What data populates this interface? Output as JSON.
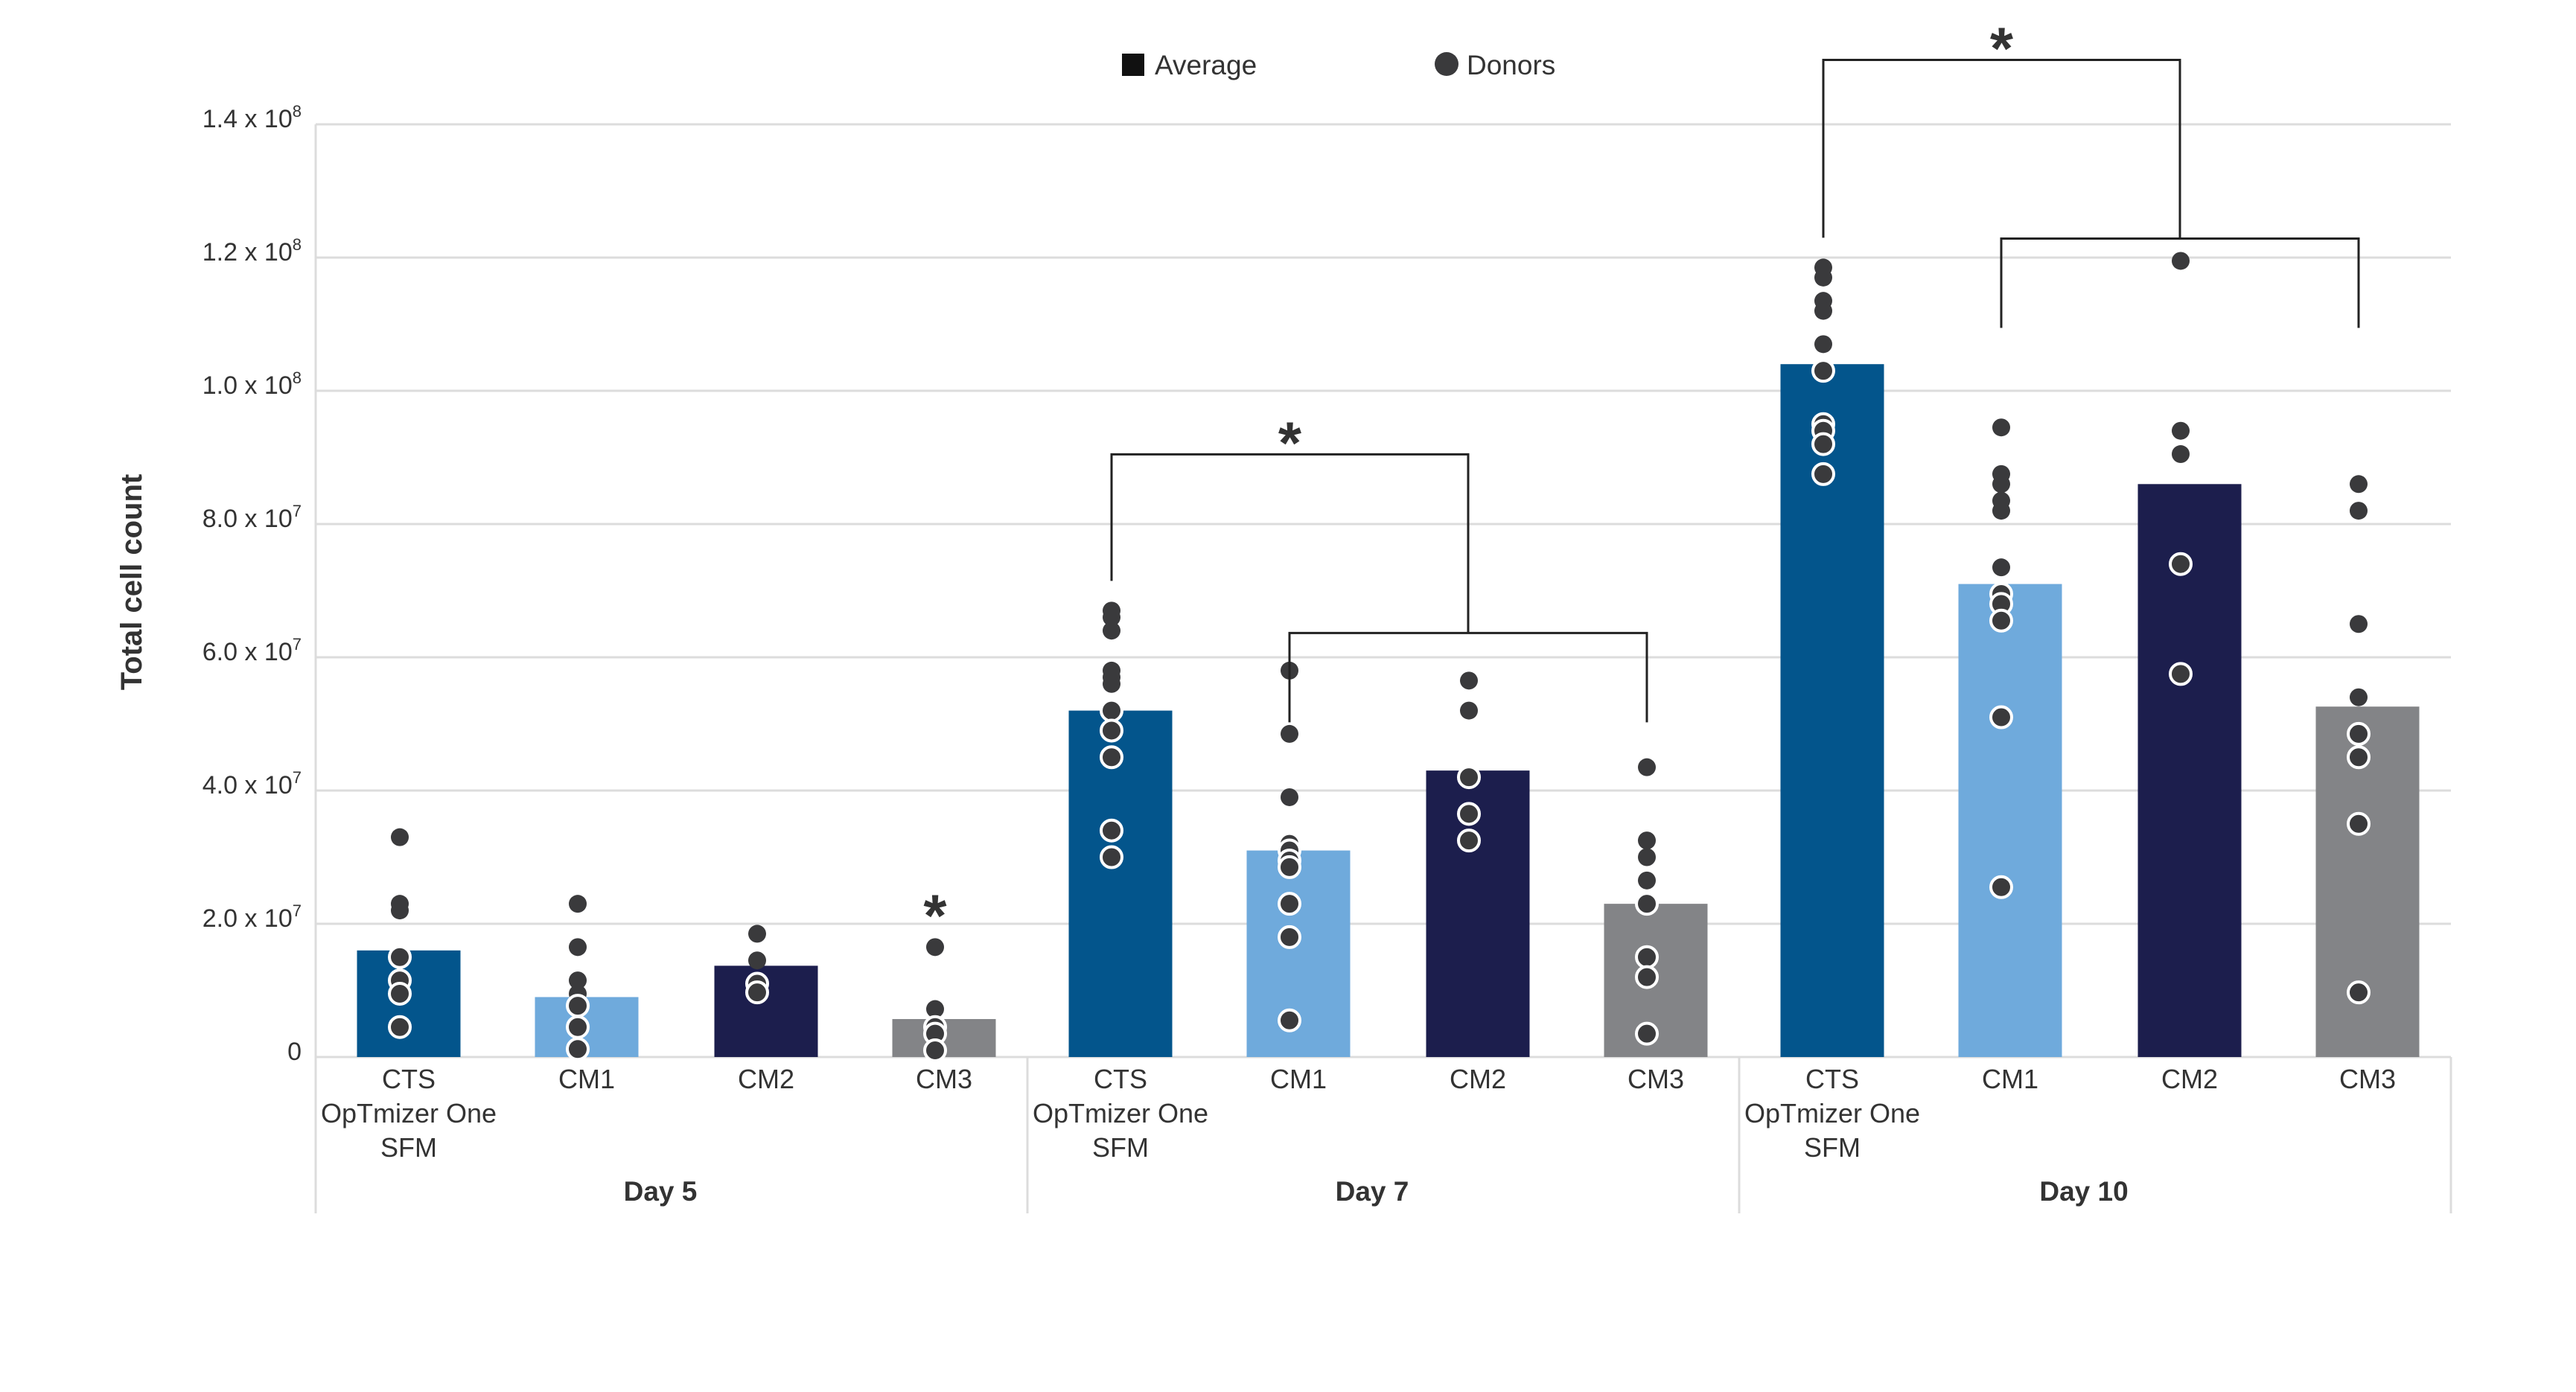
{
  "chart_data": {
    "type": "bar",
    "title": "",
    "xlabel": "",
    "ylabel": "Total cell count",
    "ylim": [
      0,
      140000000
    ],
    "grid": true,
    "legend": {
      "placement": "top-center",
      "entries": [
        {
          "label": "Average",
          "marker": "square"
        },
        {
          "label": "Donors",
          "marker": "circle"
        }
      ]
    },
    "yticks": [
      {
        "value": 0,
        "mantissa": "0",
        "exp": ""
      },
      {
        "value": 20000000,
        "mantissa": "2.0 x 10",
        "exp": "7"
      },
      {
        "value": 40000000,
        "mantissa": "4.0 x 10",
        "exp": "7"
      },
      {
        "value": 60000000,
        "mantissa": "6.0 x 10",
        "exp": "7"
      },
      {
        "value": 80000000,
        "mantissa": "8.0 x 10",
        "exp": "7"
      },
      {
        "value": 100000000,
        "mantissa": "1.0 x 10",
        "exp": "8"
      },
      {
        "value": 120000000,
        "mantissa": "1.2 x 10",
        "exp": "8"
      },
      {
        "value": 140000000,
        "mantissa": "1.4 x 10",
        "exp": "8"
      }
    ],
    "colors": {
      "CTS OpTmizer One SFM": "#03558c",
      "CM1": "#6faadc",
      "CM2": "#1c1e4d",
      "CM3": "#838487",
      "donor": "#3a3a3c",
      "grid": "#dcdcdc"
    },
    "groups": [
      {
        "label": "Day 5",
        "bars": [
          {
            "label_lines": [
              "CTS",
              "OpTmizer One",
              "SFM"
            ],
            "key": "CTS OpTmizer One SFM",
            "average": 16000000,
            "donors": [
              33000000,
              23000000,
              22000000,
              15000000,
              11500000,
              9500000,
              4500000
            ]
          },
          {
            "label_lines": [
              "CM1"
            ],
            "key": "CM1",
            "average": 9000000,
            "donors": [
              23000000,
              16500000,
              11500000,
              9500000,
              7700000,
              4500000,
              1200000
            ]
          },
          {
            "label_lines": [
              "CM2"
            ],
            "key": "CM2",
            "average": 13700000,
            "donors": [
              18500000,
              14500000,
              11000000,
              9700000
            ]
          },
          {
            "label_lines": [
              "CM3"
            ],
            "key": "CM3",
            "average": 5700000,
            "donors": [
              16500000,
              7200000,
              4500000,
              3500000,
              1000000
            ],
            "significance": "*"
          }
        ]
      },
      {
        "label": "Day 7",
        "bars": [
          {
            "label_lines": [
              "CTS",
              "OpTmizer One",
              "SFM"
            ],
            "key": "CTS OpTmizer One SFM",
            "average": 52000000,
            "donors": [
              67000000,
              66000000,
              64000000,
              58000000,
              57000000,
              56000000,
              52000000,
              49000000,
              45000000,
              34000000,
              30000000
            ]
          },
          {
            "label_lines": [
              "CM1"
            ],
            "key": "CM1",
            "average": 31000000,
            "donors": [
              58000000,
              48500000,
              39000000,
              32000000,
              31000000,
              29500000,
              28500000,
              23000000,
              18000000,
              5500000
            ]
          },
          {
            "label_lines": [
              "CM2"
            ],
            "key": "CM2",
            "average": 43000000,
            "donors": [
              56500000,
              52000000,
              42000000,
              36500000,
              32500000
            ]
          },
          {
            "label_lines": [
              "CM3"
            ],
            "key": "CM3",
            "average": 23000000,
            "donors": [
              43500000,
              32500000,
              30000000,
              26500000,
              23000000,
              15000000,
              12000000,
              3500000
            ]
          }
        ],
        "comparison": {
          "from": "CTS OpTmizer One SFM",
          "to": [
            "CM1",
            "CM2",
            "CM3"
          ],
          "significance": "*"
        }
      },
      {
        "label": "Day 10",
        "bars": [
          {
            "label_lines": [
              "CTS",
              "OpTmizer One",
              "SFM"
            ],
            "key": "CTS OpTmizer One SFM",
            "average": 104000000,
            "donors": [
              118500000,
              117000000,
              113500000,
              112000000,
              107000000,
              103000000,
              95000000,
              94000000,
              92000000,
              87500000
            ]
          },
          {
            "label_lines": [
              "CM1"
            ],
            "key": "CM1",
            "average": 71000000,
            "donors": [
              94500000,
              87500000,
              86000000,
              83500000,
              82000000,
              73500000,
              69500000,
              68000000,
              65500000,
              51000000,
              25500000
            ]
          },
          {
            "label_lines": [
              "CM2"
            ],
            "key": "CM2",
            "average": 86000000,
            "donors": [
              119500000,
              94000000,
              90500000,
              74000000,
              57500000
            ]
          },
          {
            "label_lines": [
              "CM3"
            ],
            "key": "CM3",
            "average": 52600000,
            "donors": [
              86000000,
              82000000,
              65000000,
              54000000,
              48500000,
              45000000,
              35000000,
              9700000
            ]
          }
        ],
        "comparison": {
          "from": "CTS OpTmizer One SFM",
          "to": [
            "CM1",
            "CM2",
            "CM3"
          ],
          "significance": "*"
        }
      }
    ]
  }
}
